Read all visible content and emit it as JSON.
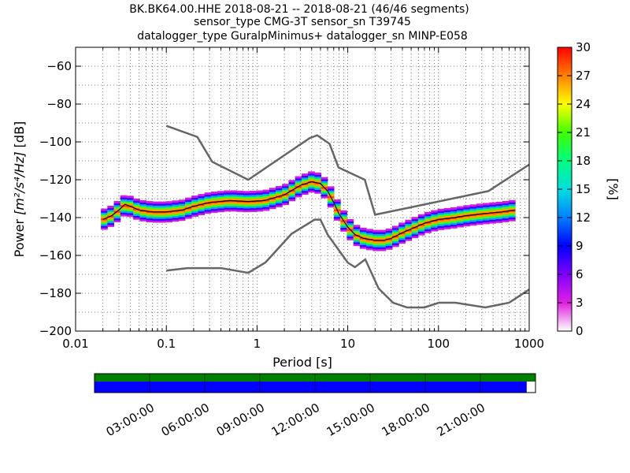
{
  "chart_data": {
    "type": "heatmap",
    "title_lines": [
      "BK.BK64.00.HHE   2018-08-21 -- 2018-08-21  (46/46 segments)",
      "sensor_type CMG-3T sensor_sn T39745",
      "datalogger_type GuralpMinimus+ datalogger_sn MINP-E058"
    ],
    "xlabel": "Period [s]",
    "ylabel_prefix": "Power ",
    "ylabel_unit": "[m²/s⁴/Hz]",
    "ylabel_suffix": " [dB]",
    "x_scale": "log",
    "xlim": [
      0.01,
      1000
    ],
    "ylim": [
      -200,
      -50
    ],
    "x_ticks": [
      {
        "value": 0.01,
        "label": "0.01"
      },
      {
        "value": 0.1,
        "label": "0.1"
      },
      {
        "value": 1,
        "label": "1"
      },
      {
        "value": 10,
        "label": "10"
      },
      {
        "value": 100,
        "label": "100"
      },
      {
        "value": 1000,
        "label": "1000"
      }
    ],
    "y_ticks": [
      {
        "value": -60,
        "label": "−60"
      },
      {
        "value": -80,
        "label": "−80"
      },
      {
        "value": -100,
        "label": "−100"
      },
      {
        "value": -120,
        "label": "−120"
      },
      {
        "value": -140,
        "label": "−140"
      },
      {
        "value": -160,
        "label": "−160"
      },
      {
        "value": -180,
        "label": "−180"
      },
      {
        "value": -200,
        "label": "−200"
      }
    ],
    "grid": true,
    "colorbar": {
      "label": "[%]",
      "range": [
        0,
        30
      ],
      "ticks": [
        "0",
        "3",
        "6",
        "9",
        "12",
        "15",
        "18",
        "21",
        "24",
        "27",
        "30"
      ],
      "colors": [
        "#ffffff",
        "#e020e0",
        "#8000ff",
        "#0000ff",
        "#0080ff",
        "#00e0e0",
        "#00ff80",
        "#40ff00",
        "#ffff00",
        "#ff8000",
        "#ff0000"
      ]
    },
    "noise_models": [
      {
        "name": "high",
        "x": [
          0.1,
          0.22,
          0.32,
          0.8,
          3.8,
          4.6,
          6.3,
          7.9,
          15.4,
          20,
          354.8,
          1000
        ],
        "y": [
          -91.5,
          -97.4,
          -110.5,
          -120,
          -98,
          -96.5,
          -101,
          -113.5,
          -120,
          -138.5,
          -126,
          -112
        ]
      },
      {
        "name": "low",
        "x": [
          0.1,
          0.17,
          0.4,
          0.8,
          1.24,
          2.4,
          4.3,
          5,
          6,
          10,
          12,
          15.6,
          21.9,
          31.6,
          45,
          70,
          101,
          154,
          328,
          600,
          1000
        ],
        "y": [
          -168,
          -166.7,
          -166.7,
          -169.2,
          -163.7,
          -148.6,
          -141.1,
          -141.1,
          -149,
          -163.8,
          -166.2,
          -162.1,
          -177.5,
          -185,
          -187.5,
          -187.5,
          -185,
          -185,
          -187.5,
          -185,
          -178
        ]
      }
    ],
    "mean_curve": {
      "x": [
        0.02,
        0.025,
        0.03,
        0.035,
        0.04,
        0.05,
        0.07,
        0.1,
        0.15,
        0.2,
        0.3,
        0.5,
        0.8,
        1.2,
        2,
        3,
        4,
        5,
        6,
        7,
        8,
        10,
        12,
        15,
        20,
        25,
        30,
        40,
        50,
        70,
        100,
        150,
        200,
        300,
        500,
        700
      ],
      "y": [
        -141,
        -139,
        -136,
        -133,
        -134,
        -136,
        -137,
        -137,
        -136,
        -134,
        -132,
        -131,
        -131.5,
        -131,
        -128,
        -123,
        -121,
        -122,
        -126,
        -132,
        -138,
        -145,
        -149,
        -151,
        -152,
        -152,
        -151,
        -148,
        -146,
        -143,
        -141,
        -140,
        -139,
        -138,
        -137,
        -136
      ]
    },
    "timeline": {
      "labels": [
        "03:00:00",
        "06:00:00",
        "09:00:00",
        "12:00:00",
        "15:00:00",
        "18:00:00",
        "21:00:00"
      ],
      "hours": [
        3,
        6,
        9,
        12,
        15,
        18,
        21
      ],
      "span_hours": [
        0,
        24
      ],
      "available_fraction": 0.98,
      "top_bar_color": "#008000",
      "bottom_bar_color": "#0000ff"
    }
  }
}
